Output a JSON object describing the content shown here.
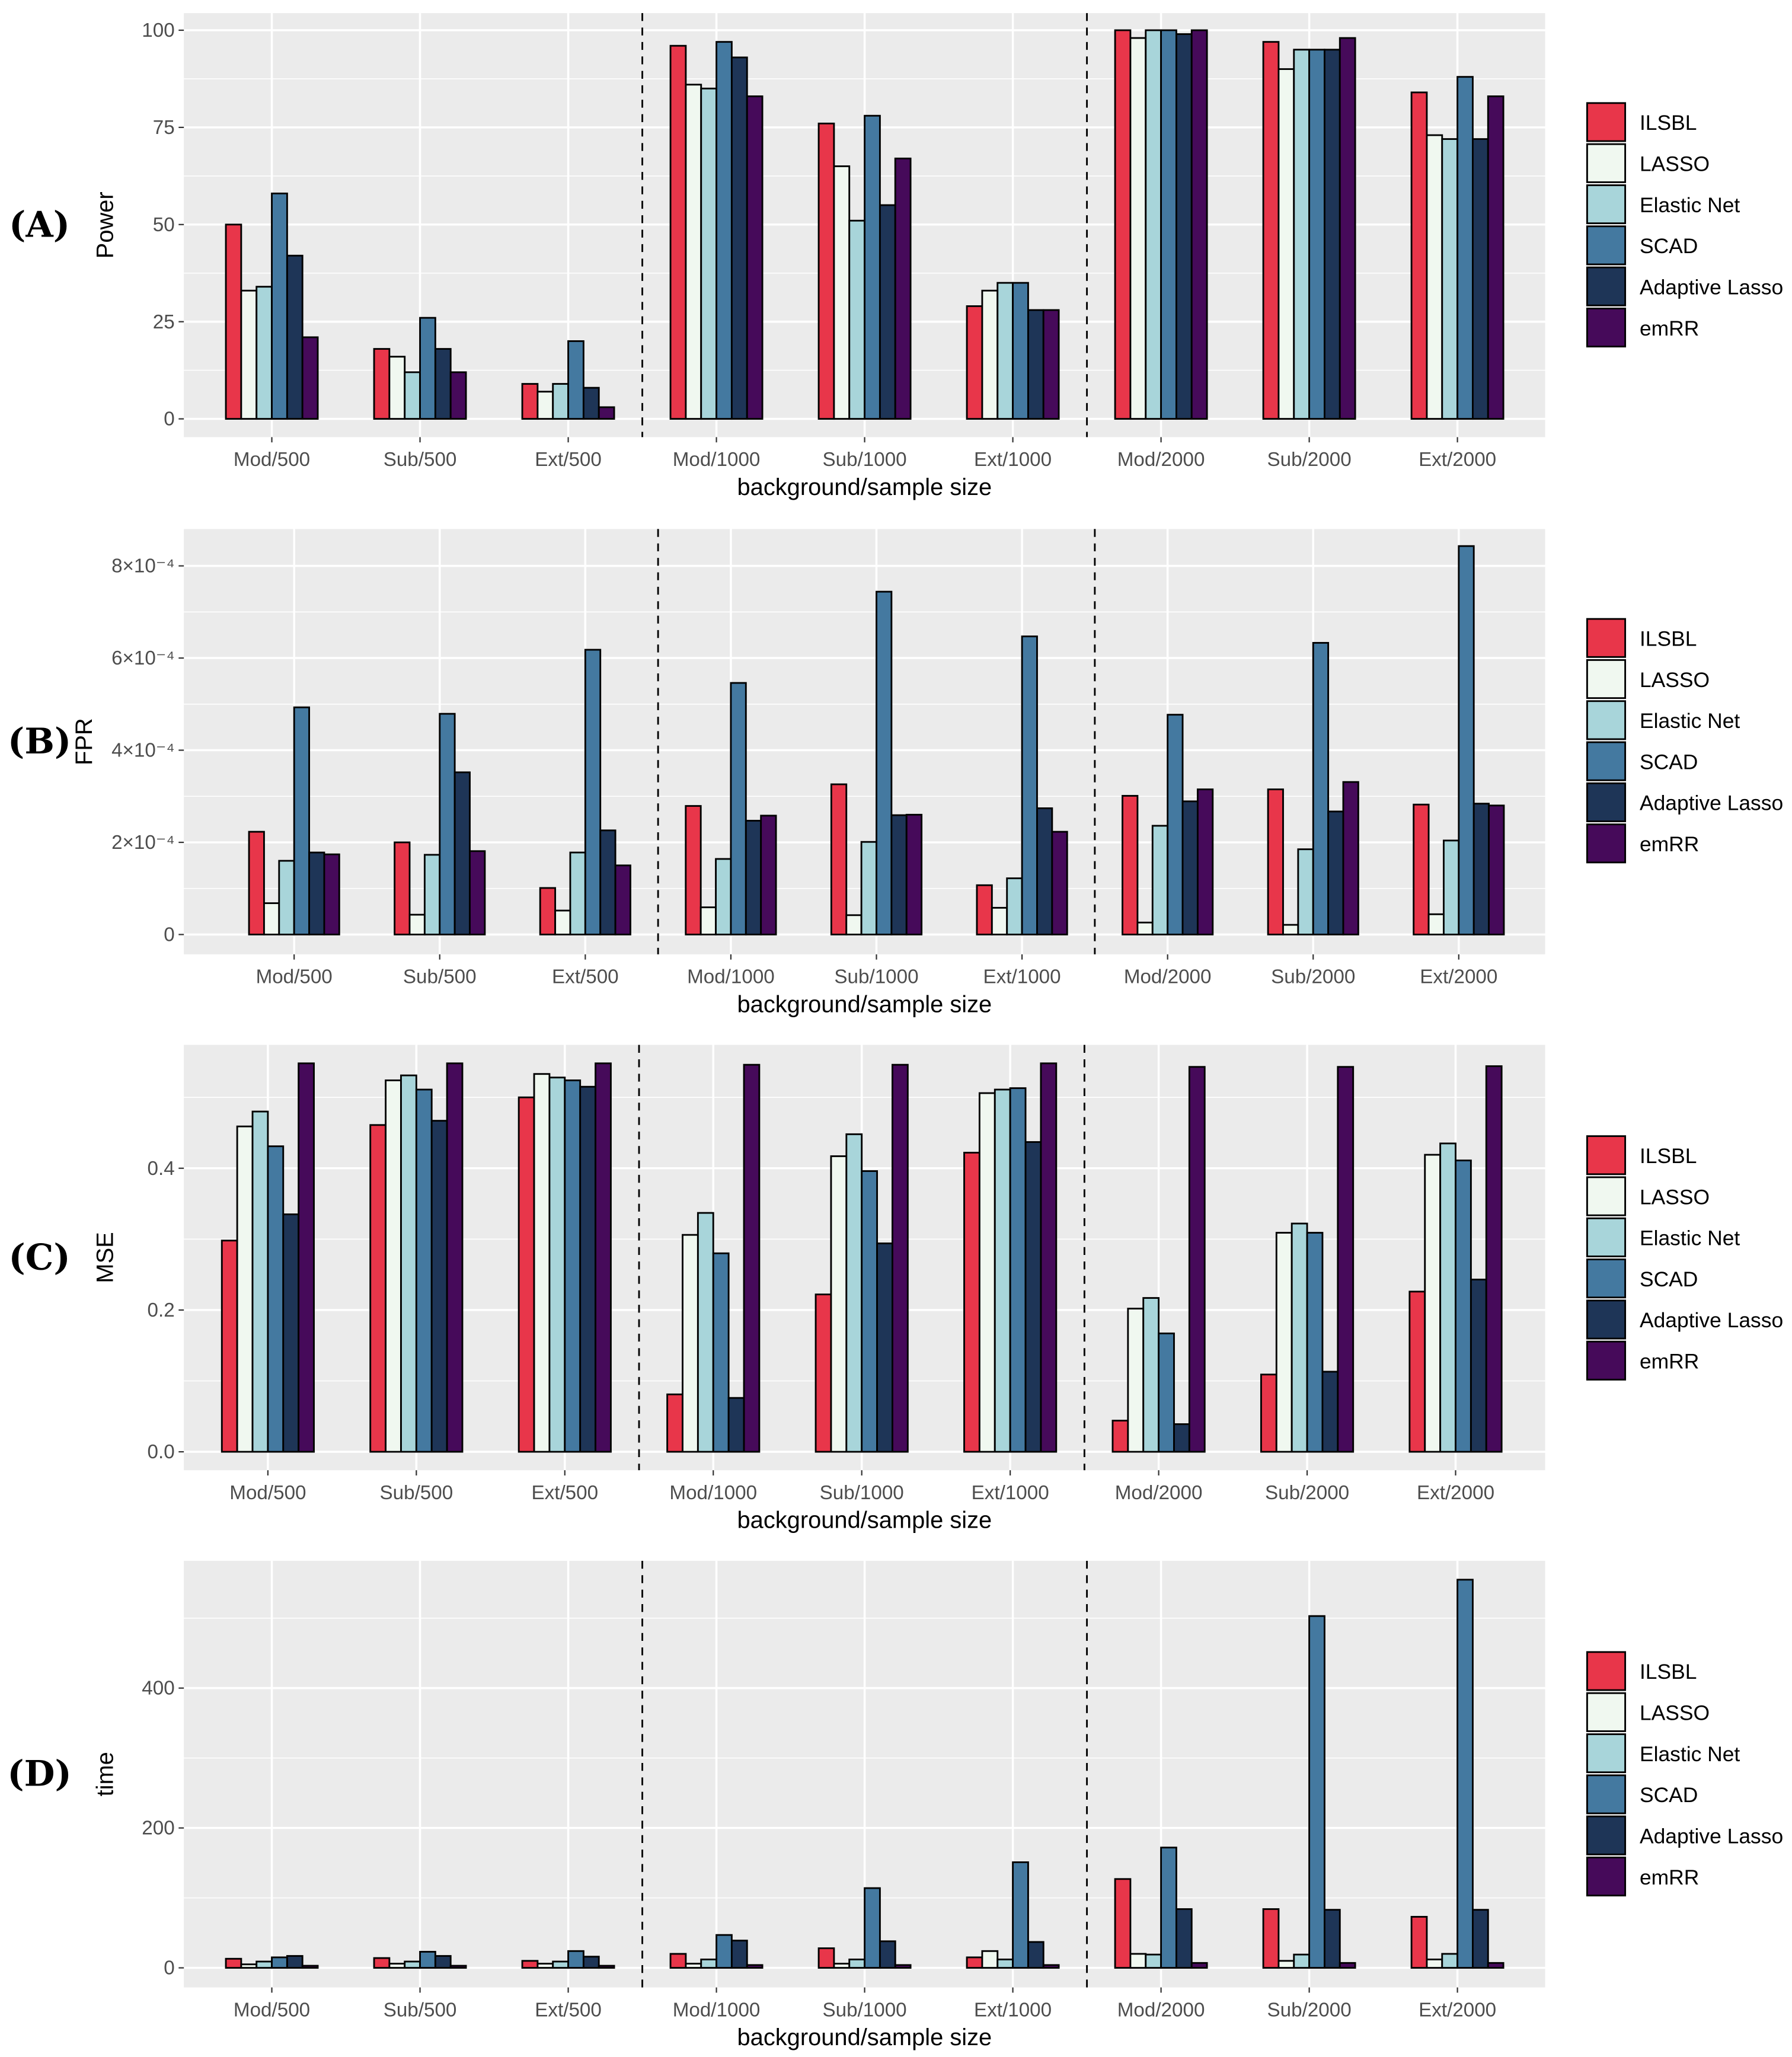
{
  "chart_data": [
    {
      "type": "bar",
      "panel_label": "(A)",
      "title": "",
      "xlabel": "background/sample size",
      "ylabel": "Power",
      "ylim": [
        -4.7,
        104.4
      ],
      "yticks": [
        0,
        25,
        50,
        75,
        100
      ],
      "ytick_labels": [
        "0",
        "25",
        "50",
        "75",
        "100"
      ],
      "categories": [
        "Mod/500",
        "Sub/500",
        "Ext/500",
        "Mod/1000",
        "Sub/1000",
        "Ext/1000",
        "Mod/2000",
        "Sub/2000",
        "Ext/2000"
      ],
      "series": [
        {
          "name": "ILSBL",
          "values": [
            50,
            18,
            9,
            96,
            76,
            29,
            100,
            97,
            84
          ]
        },
        {
          "name": "LASSO",
          "values": [
            33,
            16,
            7,
            86,
            65,
            33,
            98,
            90,
            73
          ]
        },
        {
          "name": "Elastic Net",
          "values": [
            34,
            12,
            9,
            85,
            51,
            35,
            100,
            95,
            72
          ]
        },
        {
          "name": "SCAD",
          "values": [
            58,
            26,
            20,
            97,
            78,
            35,
            100,
            95,
            88
          ]
        },
        {
          "name": "Adaptive Lasso",
          "values": [
            42,
            18,
            8,
            93,
            55,
            28,
            99,
            95,
            72
          ]
        },
        {
          "name": "emRR",
          "values": [
            21,
            12,
            3,
            83,
            67,
            28,
            100,
            98,
            83
          ]
        }
      ],
      "legend_position": "right",
      "grid": true
    },
    {
      "type": "bar",
      "panel_label": "(B)",
      "title": "",
      "xlabel": "background/sample size",
      "ylabel": "FPR",
      "ylim": [
        -4.3e-05,
        0.00088
      ],
      "yticks": [
        0,
        0.0002,
        0.0004,
        0.0006,
        0.0008
      ],
      "ytick_labels": [
        "0",
        "2×10⁻⁴",
        "4×10⁻⁴",
        "6×10⁻⁴",
        "8×10⁻⁴"
      ],
      "categories": [
        "Mod/500",
        "Sub/500",
        "Ext/500",
        "Mod/1000",
        "Sub/1000",
        "Ext/1000",
        "Mod/2000",
        "Sub/2000",
        "Ext/2000"
      ],
      "series": [
        {
          "name": "ILSBL",
          "values": [
            0.000223,
            0.0002,
            0.000101,
            0.000279,
            0.000326,
            0.000107,
            0.000301,
            0.000315,
            0.000282
          ]
        },
        {
          "name": "LASSO",
          "values": [
            6.8e-05,
            4.3e-05,
            5.2e-05,
            5.9e-05,
            4.2e-05,
            5.8e-05,
            2.6e-05,
            2.1e-05,
            4.4e-05
          ]
        },
        {
          "name": "Elastic Net",
          "values": [
            0.00016,
            0.000173,
            0.000178,
            0.000164,
            0.000201,
            0.000122,
            0.000236,
            0.000185,
            0.000204
          ]
        },
        {
          "name": "SCAD",
          "values": [
            0.000493,
            0.000479,
            0.000618,
            0.000546,
            0.000744,
            0.000647,
            0.000477,
            0.000633,
            0.000843
          ]
        },
        {
          "name": "Adaptive Lasso",
          "values": [
            0.000178,
            0.000352,
            0.000226,
            0.000247,
            0.000259,
            0.000274,
            0.000289,
            0.000267,
            0.000284
          ]
        },
        {
          "name": "emRR",
          "values": [
            0.000174,
            0.000181,
            0.00015,
            0.000258,
            0.00026,
            0.000223,
            0.000315,
            0.000331,
            0.00028
          ]
        }
      ],
      "legend_position": "right",
      "grid": true
    },
    {
      "type": "bar",
      "panel_label": "(C)",
      "title": "",
      "xlabel": "background/sample size",
      "ylabel": "MSE",
      "ylim": [
        -0.026,
        0.574
      ],
      "yticks": [
        0,
        0.2,
        0.4
      ],
      "ytick_labels": [
        "0.0",
        "0.2",
        "0.4"
      ],
      "categories": [
        "Mod/500",
        "Sub/500",
        "Ext/500",
        "Mod/1000",
        "Sub/1000",
        "Ext/1000",
        "Mod/2000",
        "Sub/2000",
        "Ext/2000"
      ],
      "series": [
        {
          "name": "ILSBL",
          "values": [
            0.298,
            0.461,
            0.5,
            0.081,
            0.222,
            0.422,
            0.044,
            0.109,
            0.226
          ]
        },
        {
          "name": "LASSO",
          "values": [
            0.459,
            0.524,
            0.533,
            0.306,
            0.417,
            0.506,
            0.202,
            0.309,
            0.419
          ]
        },
        {
          "name": "Elastic Net",
          "values": [
            0.48,
            0.531,
            0.528,
            0.337,
            0.448,
            0.511,
            0.217,
            0.322,
            0.435
          ]
        },
        {
          "name": "SCAD",
          "values": [
            0.431,
            0.511,
            0.524,
            0.28,
            0.396,
            0.513,
            0.167,
            0.309,
            0.411
          ]
        },
        {
          "name": "Adaptive Lasso",
          "values": [
            0.335,
            0.467,
            0.515,
            0.076,
            0.294,
            0.437,
            0.039,
            0.113,
            0.243
          ]
        },
        {
          "name": "emRR",
          "values": [
            0.548,
            0.548,
            0.548,
            0.546,
            0.546,
            0.548,
            0.543,
            0.543,
            0.544
          ]
        }
      ],
      "legend_position": "right",
      "grid": true
    },
    {
      "type": "bar",
      "panel_label": "(D)",
      "title": "",
      "xlabel": "background/sample size",
      "ylabel": "time",
      "ylim": [
        -28,
        582
      ],
      "yticks": [
        0,
        200,
        400
      ],
      "ytick_labels": [
        "0",
        "200",
        "400"
      ],
      "categories": [
        "Mod/500",
        "Sub/500",
        "Ext/500",
        "Mod/1000",
        "Sub/1000",
        "Ext/1000",
        "Mod/2000",
        "Sub/2000",
        "Ext/2000"
      ],
      "series": [
        {
          "name": "ILSBL",
          "values": [
            13,
            14,
            10,
            20,
            28,
            15,
            127,
            84,
            73
          ]
        },
        {
          "name": "LASSO",
          "values": [
            5,
            6,
            6,
            6,
            6,
            24,
            20,
            10,
            12
          ]
        },
        {
          "name": "Elastic Net",
          "values": [
            9,
            9,
            9,
            12,
            12,
            12,
            19,
            19,
            20
          ]
        },
        {
          "name": "SCAD",
          "values": [
            15,
            23,
            24,
            47,
            114,
            151,
            172,
            503,
            555
          ]
        },
        {
          "name": "Adaptive Lasso",
          "values": [
            17,
            17,
            16,
            39,
            38,
            37,
            84,
            83,
            83
          ]
        },
        {
          "name": "emRR",
          "values": [
            3,
            3,
            3,
            4,
            4,
            4,
            7,
            7,
            7
          ]
        }
      ],
      "legend_position": "right",
      "grid": true
    }
  ],
  "colors": {
    "ILSBL": "#e8364a",
    "LASSO": "#f0f8f0",
    "Elastic Net": "#a8d5da",
    "SCAD": "#4479a0",
    "Adaptive Lasso": "#1e3557",
    "emRR": "#460a5a",
    "panel_bg": "#ebebeb"
  }
}
